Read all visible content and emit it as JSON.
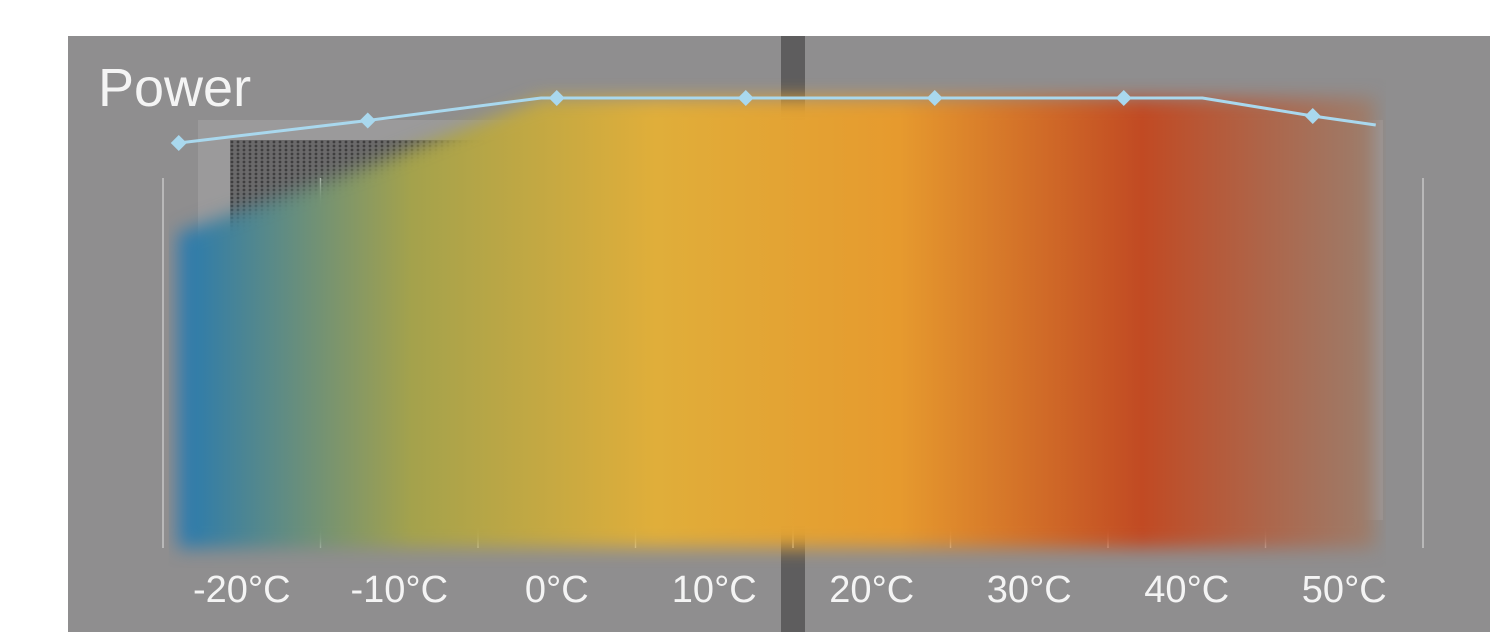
{
  "chart_data": {
    "type": "area",
    "title": "Power",
    "xlabel": "",
    "ylabel": "",
    "x_tick_labels": [
      "-20°C",
      "-10°C",
      "0°C",
      "10°C",
      "20°C",
      "30°C",
      "40°C",
      "50°C"
    ],
    "xlim": [
      -25,
      55
    ],
    "ylim": [
      0,
      100
    ],
    "grid": true,
    "legend": "none",
    "series": [
      {
        "values_x": [
          -24,
          -12,
          0,
          12,
          24,
          36,
          48
        ],
        "values": [
          90,
          95,
          100,
          100,
          100,
          100,
          96
        ],
        "line_x": [
          -24,
          -12,
          -1,
          0,
          12,
          24,
          36,
          41,
          48,
          52
        ],
        "line_values": [
          90,
          95,
          100,
          100,
          100,
          100,
          100,
          100,
          96,
          94
        ],
        "color": "#a9d8ee"
      }
    ],
    "gradient": {
      "band_x": [
        -24,
        -12,
        -1,
        12,
        24,
        36,
        41,
        52
      ],
      "band_values": [
        70,
        85,
        100,
        100,
        100,
        100,
        100,
        100
      ],
      "colors": [
        "#2378b4",
        "#a4a24c",
        "#e0ae3a",
        "#e69a2e",
        "#c14a23",
        "#9a8070"
      ]
    },
    "colors": {
      "panel": "#8f8e8f",
      "machine": "#9b9a9b",
      "grille": "#5b5a5b",
      "divider": "#5e5d5e",
      "gridline": "#d6d6d6",
      "text": "#f4f4f4"
    }
  }
}
